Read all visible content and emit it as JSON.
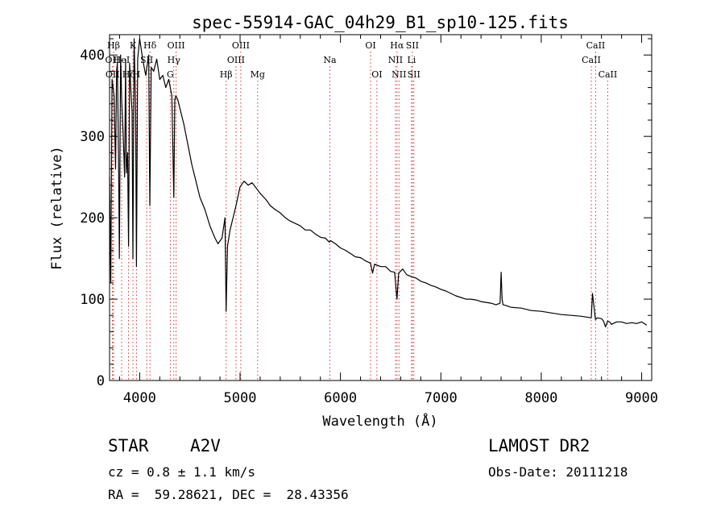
{
  "chart_data": {
    "type": "line",
    "title": "spec-55914-GAC_04h29_B1_sp10-125.fits",
    "xlabel": "Wavelength (Å)",
    "ylabel": "Flux (relative)",
    "xlim": [
      3700,
      9100
    ],
    "ylim": [
      0,
      425
    ],
    "xticks": [
      4000,
      5000,
      6000,
      7000,
      8000,
      9000
    ],
    "yticks": [
      0,
      100,
      200,
      300,
      400
    ],
    "grid": false,
    "series": [
      {
        "color": "#000000",
        "x": [
          3700,
          3712,
          3725,
          3735,
          3745,
          3760,
          3770,
          3778,
          3790,
          3798,
          3810,
          3820,
          3835,
          3850,
          3860,
          3868,
          3880,
          3889,
          3900,
          3915,
          3925,
          3933,
          3945,
          3960,
          3968,
          3980,
          4000,
          4030,
          4060,
          4090,
          4101,
          4115,
          4140,
          4170,
          4200,
          4230,
          4260,
          4290,
          4320,
          4340,
          4350,
          4360,
          4380,
          4400,
          4440,
          4480,
          4520,
          4560,
          4600,
          4650,
          4700,
          4750,
          4780,
          4820,
          4850,
          4861,
          4875,
          4900,
          4930,
          4960,
          5000,
          5040,
          5080,
          5120,
          5170,
          5200,
          5260,
          5300,
          5350,
          5400,
          5450,
          5500,
          5550,
          5600,
          5650,
          5700,
          5750,
          5800,
          5850,
          5890,
          5900,
          5950,
          6000,
          6050,
          6100,
          6150,
          6200,
          6250,
          6300,
          6320,
          6340,
          6400,
          6450,
          6500,
          6540,
          6563,
          6580,
          6620,
          6660,
          6700,
          6750,
          6800,
          6850,
          6900,
          6950,
          7000,
          7050,
          7100,
          7150,
          7200,
          7250,
          7300,
          7350,
          7400,
          7450,
          7500,
          7550,
          7590,
          7600,
          7610,
          7620,
          7650,
          7700,
          7800,
          7900,
          8000,
          8100,
          8200,
          8300,
          8400,
          8450,
          8498,
          8510,
          8540,
          8560,
          8600,
          8620,
          8640,
          8660,
          8680,
          8700,
          8750,
          8800,
          8850,
          8900,
          8950,
          9000,
          9050
        ],
        "values": [
          250,
          120,
          370,
          360,
          350,
          260,
          380,
          390,
          270,
          150,
          400,
          345,
          305,
          250,
          395,
          255,
          280,
          165,
          390,
          350,
          330,
          150,
          420,
          330,
          140,
          395,
          420,
          395,
          375,
          400,
          215,
          385,
          380,
          395,
          370,
          375,
          360,
          370,
          350,
          225,
          345,
          350,
          345,
          335,
          315,
          290,
          265,
          245,
          225,
          210,
          190,
          175,
          168,
          175,
          200,
          85,
          165,
          185,
          200,
          215,
          238,
          245,
          240,
          243,
          235,
          230,
          222,
          215,
          210,
          206,
          200,
          196,
          193,
          190,
          185,
          185,
          180,
          176,
          175,
          170,
          172,
          168,
          163,
          160,
          156,
          152,
          151,
          147,
          144,
          132,
          143,
          140,
          140,
          134,
          133,
          100,
          132,
          137,
          130,
          128,
          126,
          122,
          120,
          117,
          115,
          112,
          110,
          107,
          104,
          102,
          100,
          100,
          99,
          97,
          96,
          95,
          93,
          95,
          133,
          100,
          93,
          92,
          90,
          89,
          86,
          85,
          83,
          81,
          80,
          79,
          78,
          77,
          107,
          75,
          77,
          76,
          73,
          66,
          73,
          72,
          69,
          72,
          72,
          70,
          71,
          70,
          72,
          68
        ]
      }
    ],
    "line_markers": [
      {
        "label": "Hβ",
        "x": 3740,
        "row": 0
      },
      {
        "label": "OII",
        "x": 3727,
        "row": 1
      },
      {
        "label": "OII",
        "x": 3730,
        "row": 2
      },
      {
        "label": "HeI",
        "x": 3820,
        "row": 1
      },
      {
        "label": "Hζ",
        "x": 3889,
        "row": 2
      },
      {
        "label": "K",
        "x": 3933,
        "row": 0
      },
      {
        "label": "H",
        "x": 3968,
        "row": 2
      },
      {
        "label": "SII",
        "x": 4070,
        "row": 1
      },
      {
        "label": "Hδ",
        "x": 4102,
        "row": 0
      },
      {
        "label": "G",
        "x": 4305,
        "row": 2
      },
      {
        "label": "Hγ",
        "x": 4340,
        "row": 1
      },
      {
        "label": "OIII",
        "x": 4363,
        "row": 0
      },
      {
        "label": "Hβ",
        "x": 4861,
        "row": 2
      },
      {
        "label": "OIII",
        "x": 4959,
        "row": 1
      },
      {
        "label": "OIII",
        "x": 5007,
        "row": 0
      },
      {
        "label": "Mg",
        "x": 5175,
        "row": 2
      },
      {
        "label": "Na",
        "x": 5894,
        "row": 1
      },
      {
        "label": "OI",
        "x": 6300,
        "row": 0
      },
      {
        "label": "OI",
        "x": 6363,
        "row": 2
      },
      {
        "label": "NII",
        "x": 6548,
        "row": 1
      },
      {
        "label": "Hα",
        "x": 6563,
        "row": 0
      },
      {
        "label": "NII",
        "x": 6583,
        "row": 2
      },
      {
        "label": "SII",
        "x": 6716,
        "row": 0
      },
      {
        "label": "Li",
        "x": 6708,
        "row": 1
      },
      {
        "label": "SII",
        "x": 6731,
        "row": 2
      },
      {
        "label": "CaII",
        "x": 8498,
        "row": 1
      },
      {
        "label": "CaII",
        "x": 8542,
        "row": 0
      },
      {
        "label": "CaII",
        "x": 8662,
        "row": 2
      }
    ]
  },
  "info": {
    "object_class": "STAR",
    "subclass": "A2V",
    "survey": "LAMOST DR2",
    "cz": "cz = 0.8 ± 1.1 km/s",
    "obs_date": "Obs-Date: 20111218",
    "coords": "RA =  59.28621, DEC =  28.43356"
  }
}
